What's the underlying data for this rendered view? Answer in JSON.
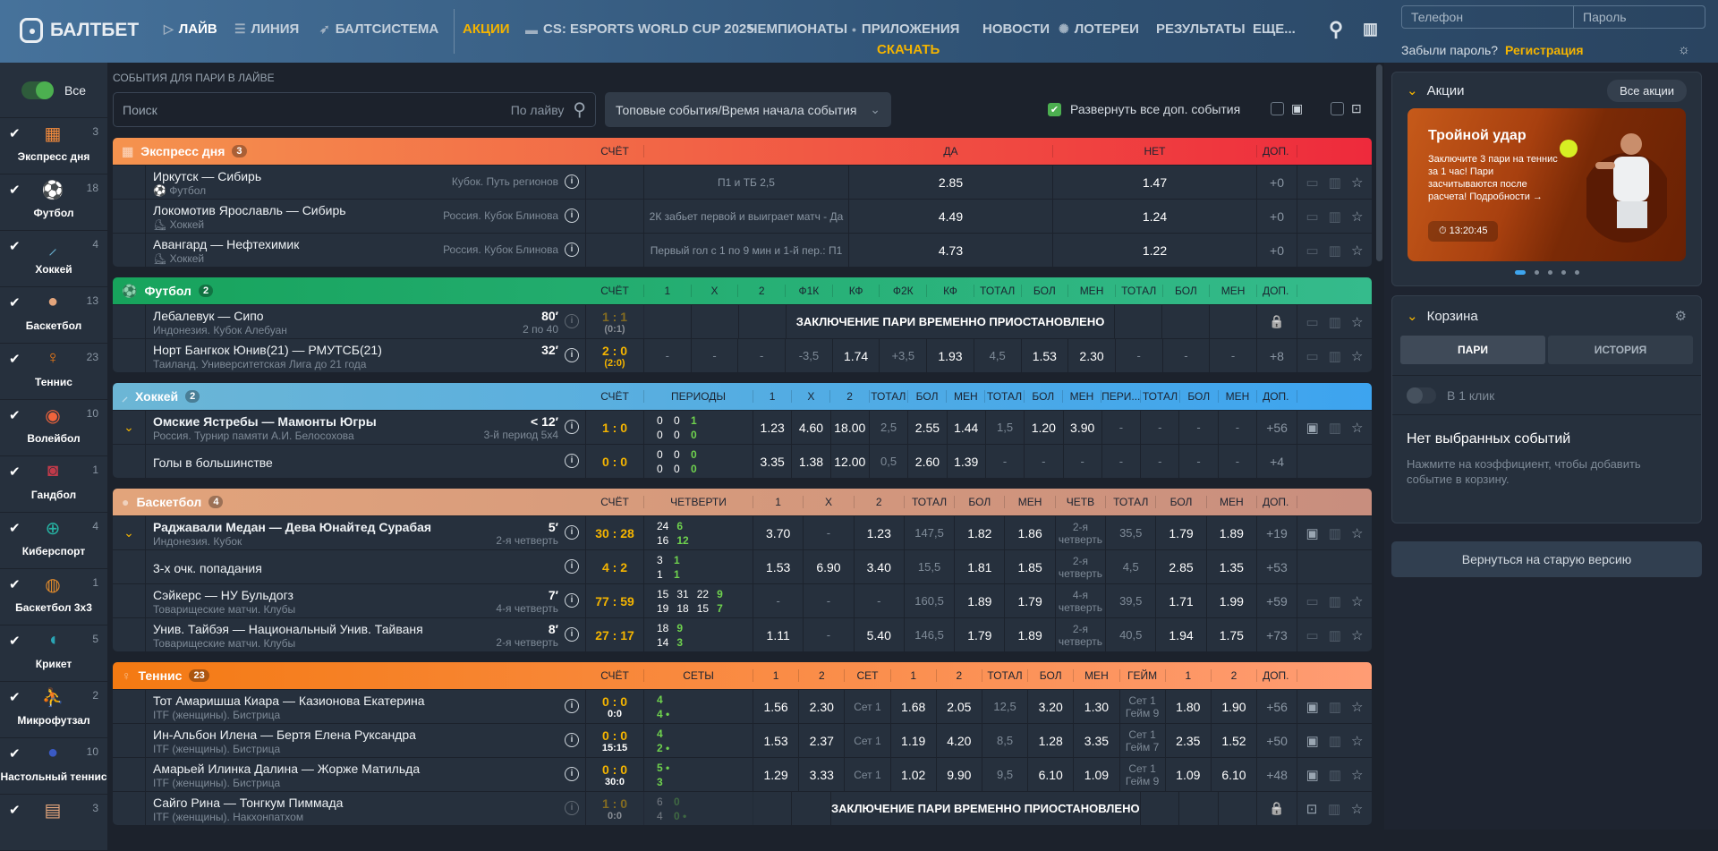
{
  "header": {
    "logo": "БАЛТБЕТ",
    "nav": [
      {
        "label": "ЛАЙВ",
        "icon": "play-circle-icon"
      },
      {
        "label": "ЛИНИЯ",
        "icon": "list-icon"
      },
      {
        "label": "БАЛТСИСТЕМА",
        "icon": "rocket-icon"
      },
      {
        "label": "АКЦИИ",
        "icon": ""
      },
      {
        "label": "CS: ESPORTS WORLD CUP 2025",
        "icon": "esports-icon"
      },
      {
        "label": "ЧЕМПИОНАТЫ",
        "icon": ""
      },
      {
        "label": "ПРИЛОЖЕНИЯ",
        "icon": "apple-icon"
      },
      {
        "label": "НОВОСТИ",
        "icon": ""
      },
      {
        "label": "ЛОТЕРЕИ",
        "icon": "lottery-icon"
      },
      {
        "label": "РЕЗУЛЬТАТЫ",
        "icon": ""
      },
      {
        "label": "ЕЩЕ...",
        "icon": ""
      }
    ],
    "download": "СКАЧАТЬ",
    "phone_placeholder": "Телефон",
    "password_placeholder": "Пароль",
    "forgot": "Забыли пароль?",
    "register": "Регистрация",
    "accent": "#f4b400"
  },
  "sidebar": {
    "all_label": "Все",
    "items": [
      {
        "label": "Экспресс дня",
        "count": "3",
        "icon": "ticket-icon",
        "color": "#f28a3c"
      },
      {
        "label": "Футбол",
        "count": "18",
        "icon": "soccer-ball-icon",
        "color": "#1aa55f"
      },
      {
        "label": "Хоккей",
        "count": "4",
        "icon": "hockey-stick-icon",
        "color": "#6bb5d6"
      },
      {
        "label": "Баскетбол",
        "count": "13",
        "icon": "basketball-icon",
        "color": "#e3a57c"
      },
      {
        "label": "Теннис",
        "count": "23",
        "icon": "tennis-racket-icon",
        "color": "#f57c14"
      },
      {
        "label": "Волейбол",
        "count": "10",
        "icon": "volleyball-icon",
        "color": "#f0643c"
      },
      {
        "label": "Гандбол",
        "count": "1",
        "icon": "handball-icon",
        "color": "#c03a4a"
      },
      {
        "label": "Киберспорт",
        "count": "4",
        "icon": "crosshair-icon",
        "color": "#26b5a5"
      },
      {
        "label": "Баскетбол 3x3",
        "count": "1",
        "icon": "basketball-3x3-icon",
        "color": "#e08a2c"
      },
      {
        "label": "Крикет",
        "count": "5",
        "icon": "cricket-icon",
        "color": "#2aa5b5"
      },
      {
        "label": "Микрофутзал",
        "count": "2",
        "icon": "futsal-icon",
        "color": "#3a7ab5"
      },
      {
        "label": "Настольный теннис",
        "count": "10",
        "icon": "table-tennis-icon",
        "color": "#3a5ac5"
      },
      {
        "label": "",
        "count": "3",
        "icon": "volleyball-net-icon",
        "color": "#e3a57c"
      }
    ]
  },
  "toolbar": {
    "title": "СОБЫТИЯ ДЛЯ ПАРИ В ЛАЙВЕ",
    "search_placeholder": "Поиск",
    "search_scope": "По лайву",
    "sort": "Топовые события/Время начала события",
    "expand_all": "Развернуть все доп. события",
    "expand_checked": true
  },
  "suspended_text": "ЗАКЛЮЧЕНИЕ ПАРИ ВРЕМЕННО ПРИОСТАНОВЛЕНО",
  "sections": [
    {
      "title": "Экспресс дня",
      "count": "3",
      "icon": "ticket-icon",
      "gradient": [
        "#f5934e",
        "#ee2a3c"
      ],
      "score_label": "СЧЁТ",
      "wide_label": "",
      "columns": [
        "ДА",
        "НЕТ"
      ],
      "extra_label": "ДОП.",
      "wide_is_text": true,
      "rows": [
        {
          "name": "Иркутск — Сибирь",
          "sub": "Футбол",
          "sub_icon": "soccer-ball-icon",
          "league": "Кубок. Путь регионов",
          "wide": "П1 и ТБ 2,5",
          "cells": [
            "2.85",
            "1.47"
          ],
          "extra": "+0",
          "media": "monitor"
        },
        {
          "name": "Локомотив Ярославль — Сибирь",
          "sub": "Хоккей",
          "sub_icon": "skate-icon",
          "league": "Россия. Кубок Блинова",
          "wide": "2К забьет первой и выиграет матч - Да",
          "cells": [
            "4.49",
            "1.24"
          ],
          "extra": "+0",
          "media": "monitor"
        },
        {
          "name": "Авангард — Нефтехимик",
          "sub": "Хоккей",
          "sub_icon": "skate-icon",
          "league": "Россия. Кубок Блинова",
          "wide": "Первый гол с 1 по 9 мин и 1-й пер.: П1",
          "cells": [
            "4.73",
            "1.22"
          ],
          "extra": "+0",
          "media": "monitor"
        }
      ]
    },
    {
      "title": "Футбол",
      "count": "2",
      "icon": "soccer-ball-icon",
      "gradient": [
        "#17a35c",
        "#35bb8c"
      ],
      "score_label": "СЧЁТ",
      "columns": [
        "1",
        "X",
        "2",
        "Ф1К",
        "КФ",
        "Ф2К",
        "КФ",
        "ТОТАЛ",
        "БОЛ",
        "МЕН",
        "ТОТАЛ",
        "БОЛ",
        "МЕН"
      ],
      "extra_label": "ДОП.",
      "rows": [
        {
          "name": "Лебалевук — Сипо",
          "sub": "Индонезия. Кубок Алебуан",
          "time": "80′",
          "period": "2 по 40",
          "score": "1 : 1",
          "score_sub": "(0:1)",
          "score_dim": true,
          "info_dim": true,
          "cells": [
            "",
            "",
            "",
            {
              "suspended": true,
              "span": 7
            },
            "",
            "",
            ""
          ],
          "locked": true,
          "media": "monitor"
        },
        {
          "name": "Норт Бангкок Юнив(21) — РМУТСБ(21)",
          "sub": "Таиланд. Университетская Лига до 21 года",
          "time": "32′",
          "score": "2 : 0",
          "score_sub": "(2:0)",
          "score_sub_yellow": true,
          "cells": [
            "-",
            "-",
            "-",
            "-3,5",
            "1.74",
            "+3,5",
            "1.93",
            "4,5",
            "1.53",
            "2.30",
            "-",
            "-",
            "-"
          ],
          "extra": "+8",
          "media": "monitor"
        }
      ]
    },
    {
      "title": "Хоккей",
      "count": "2",
      "icon": "hockey-stick-icon",
      "gradient": [
        "#6cb6d5",
        "#3da4ef"
      ],
      "score_label": "СЧЁТ",
      "wide_label": "ПЕРИОДЫ",
      "columns": [
        "1",
        "X",
        "2",
        "ТОТАЛ",
        "БОЛ",
        "МЕН",
        "ТОТАЛ",
        "БОЛ",
        "МЕН",
        "ПЕРИ...",
        "ТОТАЛ",
        "БОЛ",
        "МЕН"
      ],
      "extra_label": "ДОП.",
      "rows": [
        {
          "name": "Омские Ястребы — Мамонты Югры",
          "bold": true,
          "expanded": true,
          "sub": "Россия. Турнир памяти А.И. Белосохова",
          "time": "< 12′",
          "period": "3-й период 5x4",
          "score": "1 : 0",
          "periods": [
            [
              "0",
              "0",
              "1"
            ],
            [
              "0",
              "0",
              "0"
            ]
          ],
          "cells": [
            "1.23",
            "4.60",
            "18.00",
            "2,5",
            "2.55",
            "1.44",
            "1,5",
            "1.20",
            "3.90",
            "-",
            "-",
            "-",
            "-"
          ],
          "extra": "+56",
          "media": "play"
        },
        {
          "name": "Голы в большинстве",
          "score": "0 : 0",
          "periods": [
            [
              "0",
              "0",
              "0"
            ],
            [
              "0",
              "0",
              "0"
            ]
          ],
          "cells": [
            "3.35",
            "1.38",
            "12.00",
            "0,5",
            "2.60",
            "1.39",
            "-",
            "-",
            "-",
            "-",
            "-",
            "-",
            "-"
          ],
          "extra": "+4",
          "media": "none"
        }
      ]
    },
    {
      "title": "Баскетбол",
      "count": "4",
      "icon": "basketball-icon",
      "gradient": [
        "#e2a47b",
        "#c88e7e"
      ],
      "score_label": "СЧЁТ",
      "wide_label": "ЧЕТВЕРТИ",
      "columns": [
        "1",
        "X",
        "2",
        "ТОТАЛ",
        "БОЛ",
        "МЕН",
        "ЧЕТВ",
        "ТОТАЛ",
        "БОЛ",
        "МЕН"
      ],
      "extra_label": "ДОП.",
      "rows": [
        {
          "name": "Раджавали Медан — Дева Юнайтед Сурабая",
          "bold": true,
          "expanded": true,
          "sub": "Индонезия. Кубок",
          "time": "5′",
          "period": "2-я четверть",
          "score": "30 : 28",
          "periods": [
            [
              "24",
              "6"
            ],
            [
              "16",
              "12"
            ]
          ],
          "cells": [
            "3.70",
            "-",
            "1.23",
            "147,5",
            "1.82",
            "1.86",
            "2-я четверть",
            "35,5",
            "1.79",
            "1.89"
          ],
          "extra": "+19",
          "media": "play"
        },
        {
          "name": "3-х очк. попадания",
          "score": "4 : 2",
          "periods": [
            [
              "3",
              "1"
            ],
            [
              "1",
              "1"
            ]
          ],
          "cells": [
            "1.53",
            "6.90",
            "3.40",
            "15,5",
            "1.81",
            "1.85",
            "2-я четверть",
            "4,5",
            "2.85",
            "1.35"
          ],
          "extra": "+53",
          "media": "none"
        },
        {
          "name": "Сэйкерс — НУ Бульдогз",
          "sub": "Товарищеские матчи. Клубы",
          "time": "7′",
          "period": "4-я четверть",
          "score": "77 : 59",
          "periods": [
            [
              "15",
              "31",
              "22",
              "9"
            ],
            [
              "19",
              "18",
              "15",
              "7"
            ]
          ],
          "cells": [
            "-",
            "-",
            "-",
            "160,5",
            "1.89",
            "1.79",
            "4-я четверть",
            "39,5",
            "1.71",
            "1.99"
          ],
          "extra": "+59",
          "media": "monitor"
        },
        {
          "name": "Унив. Тайбэя — Национальный Унив. Тайваня",
          "sub": "Товарищеские матчи. Клубы",
          "time": "8′",
          "period": "2-я четверть",
          "score": "27 : 17",
          "periods": [
            [
              "18",
              "9"
            ],
            [
              "14",
              "3"
            ]
          ],
          "cells": [
            "1.11",
            "-",
            "5.40",
            "146,5",
            "1.79",
            "1.89",
            "2-я четверть",
            "40,5",
            "1.94",
            "1.75"
          ],
          "extra": "+73",
          "media": "monitor"
        }
      ]
    },
    {
      "title": "Теннис",
      "count": "23",
      "icon": "tennis-racket-icon",
      "gradient": [
        "#f47a12",
        "#ff9c74"
      ],
      "score_label": "СЧЁТ",
      "wide_label": "СЕТЫ",
      "columns": [
        "1",
        "2",
        "СЕТ",
        "1",
        "2",
        "ТОТАЛ",
        "БОЛ",
        "МЕН",
        "ГЕЙМ",
        "1",
        "2"
      ],
      "extra_label": "ДОП.",
      "rows": [
        {
          "name": "Тот Амаришша Киара — Казионова Екатерина",
          "sub": "ITF (женщины). Бистрица",
          "score": "0 : 0",
          "score_sub": "0:0",
          "periods": [
            [
              "4"
            ],
            [
              "4 •"
            ]
          ],
          "cells": [
            "1.56",
            "2.30",
            "Сет 1",
            "1.68",
            "2.05",
            "12,5",
            "3.20",
            "1.30",
            "Сет 1 Гейм 9",
            "1.80",
            "1.90"
          ],
          "extra": "+56",
          "media": "play"
        },
        {
          "name": "Ин-Альбон Илена — Бертя Елена Руксандра",
          "sub": "ITF (женщины). Бистрица",
          "score": "0 : 0",
          "score_sub": "15:15",
          "periods": [
            [
              "4"
            ],
            [
              "2 •"
            ]
          ],
          "cells": [
            "1.53",
            "2.37",
            "Сет 1",
            "1.19",
            "4.20",
            "8,5",
            "1.28",
            "3.35",
            "Сет 1 Гейм 7",
            "2.35",
            "1.52"
          ],
          "extra": "+50",
          "media": "play"
        },
        {
          "name": "Амарьей Илинка Далина — Жорже Матильда",
          "sub": "ITF (женщины). Бистрица",
          "score": "0 : 0",
          "score_sub": "30:0",
          "periods": [
            [
              "5 •"
            ],
            [
              "3"
            ]
          ],
          "cells": [
            "1.29",
            "3.33",
            "Сет 1",
            "1.02",
            "9.90",
            "9,5",
            "6.10",
            "1.09",
            "Сет 1 Гейм 9",
            "1.09",
            "6.10"
          ],
          "extra": "+48",
          "media": "play"
        },
        {
          "name": "Сайго Рина — Тонгкум Пиммада",
          "sub": "ITF (женщины). Накхонпатхом",
          "score": "1 : 0",
          "score_sub": "0:0",
          "score_dim": true,
          "info_dim": true,
          "periods_dim": true,
          "periods": [
            [
              "6",
              "0"
            ],
            [
              "4",
              "0 •"
            ]
          ],
          "cells": [
            "",
            "",
            {
              "suspended": true,
              "span": 6
            },
            "",
            "",
            ""
          ],
          "locked": true,
          "media": "field"
        }
      ]
    }
  ],
  "right": {
    "promo": {
      "title": "Акции",
      "all_button": "Все акции",
      "banner_title": "Тройной удар",
      "banner_text": "Заключите 3 пари на теннис за 1 час! Пари засчитываются после расчета! Подробности →",
      "timer": "13:20:45",
      "slides": 5,
      "active_slide": 1
    },
    "basket": {
      "title": "Корзина",
      "tabs": [
        "ПАРИ",
        "ИСТОРИЯ"
      ],
      "active_tab": 0,
      "one_click": "В 1 клик",
      "empty_title": "Нет выбранных событий",
      "empty_text": "Нажмите на коэффициент, чтобы добавить событие в корзину."
    },
    "old_version": "Вернуться на старую версию"
  }
}
